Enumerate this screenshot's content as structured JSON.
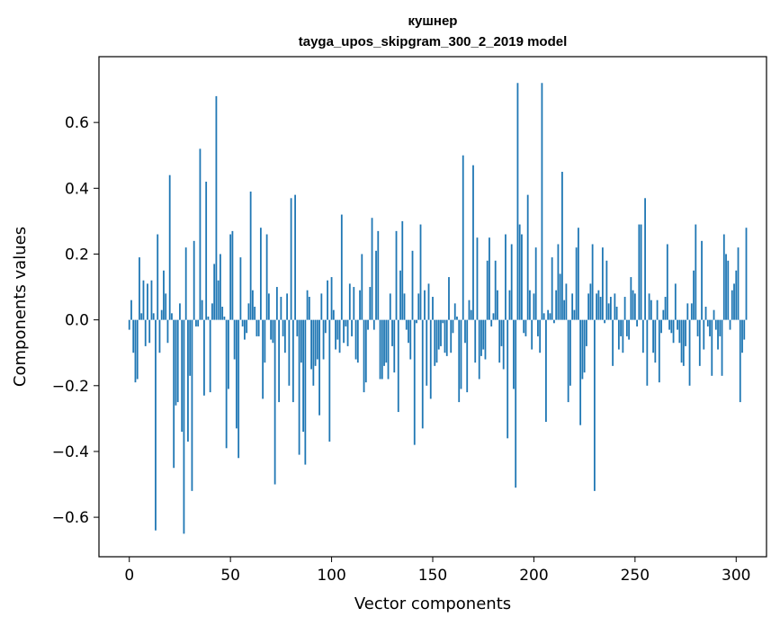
{
  "chart_data": {
    "type": "bar",
    "title": "кушнер",
    "subtitle": "tayga_upos_skipgram_300_2_2019 model",
    "xlabel": "Vector components",
    "ylabel": "Components values",
    "xlim": [
      -15,
      315
    ],
    "ylim": [
      -0.72,
      0.8
    ],
    "x_ticks": [
      0,
      50,
      100,
      150,
      200,
      250,
      300
    ],
    "y_ticks": [
      -0.6,
      -0.4,
      -0.2,
      0.0,
      0.2,
      0.4,
      0.6
    ],
    "x_tick_labels": [
      "0",
      "50",
      "100",
      "150",
      "200",
      "250",
      "300"
    ],
    "y_tick_labels": [
      "−0.6",
      "−0.4",
      "−0.2",
      "0.0",
      "0.2",
      "0.4",
      "0.6"
    ],
    "bar_color": "#1f77b4",
    "grid": false,
    "values": [
      -0.03,
      0.06,
      -0.1,
      -0.19,
      -0.18,
      0.19,
      0.02,
      0.12,
      -0.08,
      0.11,
      -0.07,
      0.12,
      0.02,
      -0.64,
      0.26,
      -0.1,
      0.03,
      0.15,
      0.08,
      -0.07,
      0.44,
      0.02,
      -0.45,
      -0.26,
      -0.25,
      0.05,
      -0.34,
      -0.65,
      0.22,
      -0.37,
      -0.17,
      -0.52,
      0.24,
      -0.02,
      -0.02,
      0.52,
      0.06,
      -0.23,
      0.42,
      0.01,
      -0.22,
      0.05,
      0.17,
      0.68,
      0.12,
      0.2,
      0.04,
      0.01,
      -0.39,
      -0.21,
      0.26,
      0.27,
      -0.12,
      -0.33,
      -0.42,
      0.19,
      -0.02,
      -0.06,
      -0.04,
      0.05,
      0.39,
      0.09,
      0.04,
      -0.05,
      -0.05,
      0.28,
      -0.24,
      -0.13,
      0.26,
      0.08,
      -0.06,
      -0.07,
      -0.5,
      0.1,
      -0.25,
      0.07,
      -0.05,
      -0.1,
      0.08,
      -0.2,
      0.37,
      -0.25,
      0.38,
      -0.05,
      -0.41,
      -0.13,
      -0.34,
      -0.44,
      0.09,
      0.07,
      -0.15,
      -0.2,
      -0.14,
      -0.12,
      -0.29,
      0.08,
      -0.12,
      -0.04,
      0.12,
      -0.37,
      0.13,
      0.03,
      -0.09,
      -0.06,
      -0.1,
      0.32,
      -0.07,
      -0.02,
      -0.08,
      0.11,
      -0.05,
      0.1,
      -0.12,
      -0.13,
      0.09,
      0.2,
      -0.22,
      -0.19,
      -0.03,
      0.1,
      0.31,
      -0.03,
      0.21,
      0.27,
      -0.18,
      -0.18,
      -0.14,
      -0.13,
      -0.18,
      0.08,
      -0.08,
      -0.16,
      0.27,
      -0.28,
      0.15,
      0.3,
      0.08,
      -0.03,
      -0.07,
      -0.12,
      0.21,
      -0.38,
      -0.01,
      0.08,
      0.29,
      -0.33,
      0.09,
      -0.2,
      0.11,
      -0.24,
      0.07,
      -0.14,
      -0.13,
      -0.09,
      -0.08,
      -0.01,
      -0.1,
      -0.11,
      0.13,
      -0.1,
      -0.04,
      0.05,
      0.01,
      -0.25,
      -0.21,
      0.5,
      -0.07,
      -0.22,
      0.06,
      0.03,
      0.47,
      -0.13,
      0.25,
      -0.18,
      -0.11,
      -0.09,
      -0.12,
      0.18,
      0.25,
      -0.02,
      0.02,
      0.18,
      0.09,
      -0.13,
      -0.08,
      -0.15,
      0.26,
      -0.36,
      0.09,
      0.23,
      -0.21,
      -0.51,
      0.72,
      0.29,
      0.26,
      -0.04,
      -0.05,
      0.38,
      0.09,
      -0.09,
      0.08,
      0.22,
      -0.05,
      -0.1,
      0.72,
      0.02,
      -0.31,
      0.03,
      0.02,
      0.19,
      -0.01,
      0.09,
      0.23,
      0.14,
      0.45,
      0.06,
      0.11,
      -0.25,
      -0.2,
      0.08,
      0.03,
      0.22,
      0.28,
      -0.32,
      -0.18,
      -0.16,
      -0.08,
      0.08,
      0.11,
      0.23,
      -0.52,
      0.08,
      0.09,
      0.07,
      0.22,
      -0.01,
      0.18,
      0.05,
      0.07,
      -0.14,
      0.08,
      0.04,
      -0.09,
      -0.05,
      -0.1,
      0.07,
      -0.05,
      -0.06,
      0.13,
      0.09,
      0.08,
      -0.02,
      0.29,
      0.29,
      -0.1,
      0.37,
      -0.2,
      0.08,
      0.06,
      -0.1,
      -0.13,
      0.06,
      -0.19,
      -0.04,
      0.03,
      0.07,
      0.23,
      -0.03,
      -0.04,
      -0.07,
      0.11,
      -0.03,
      -0.07,
      -0.13,
      -0.14,
      -0.08,
      0.05,
      -0.2,
      0.05,
      0.15,
      0.29,
      -0.05,
      -0.14,
      0.24,
      -0.09,
      0.04,
      -0.02,
      -0.05,
      -0.17,
      0.03,
      -0.03,
      -0.09,
      -0.05,
      -0.17,
      0.26,
      0.2,
      0.18,
      -0.03,
      0.09,
      0.11,
      0.15,
      0.22,
      -0.25,
      -0.1,
      -0.06,
      0.28
    ]
  }
}
